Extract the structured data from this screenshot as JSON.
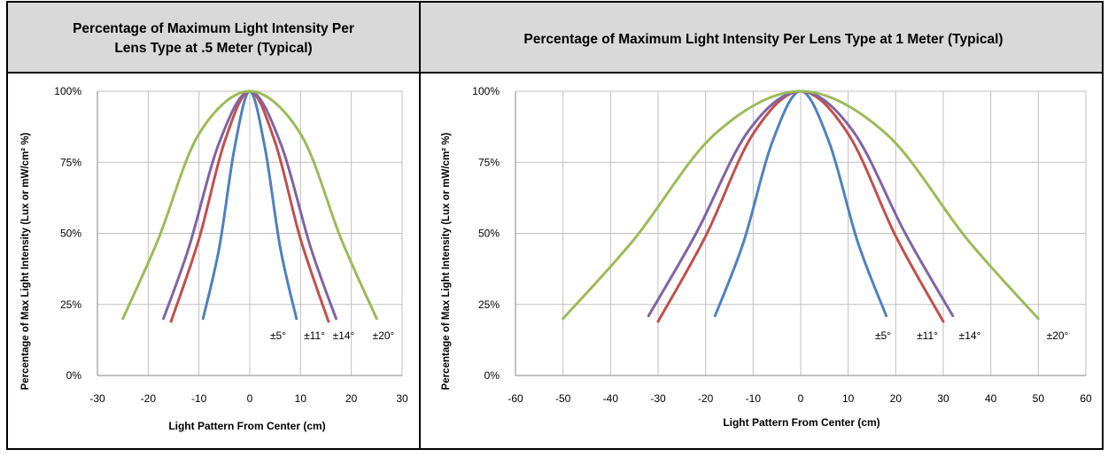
{
  "colors": {
    "header_bg": "#d9d9d9",
    "border": "#000000",
    "grid": "#bfbfbf",
    "text": "#000000"
  },
  "chart_data": [
    {
      "type": "line",
      "title": "Percentage of Maximum Light Intensity Per Lens Type at .5 Meter (Typical)",
      "title_lines": [
        "Percentage of Maximum  Light Intensity Per",
        "Lens Type at .5 Meter (Typical)"
      ],
      "xlabel": "Light Pattern  From Center (cm)",
      "ylabel": "Percentage of Max Light  Intensity (Lux or mW/cm² %)",
      "xlim": [
        -30,
        30
      ],
      "ylim": [
        0,
        100
      ],
      "x_ticks": [
        -30,
        -20,
        -10,
        0,
        10,
        20,
        30
      ],
      "x_tick_labels": [
        "-30",
        "-20",
        "-10",
        "0",
        "10",
        "20",
        "30"
      ],
      "y_ticks": [
        0,
        25,
        50,
        75,
        100
      ],
      "y_tick_labels": [
        "0%",
        "25%",
        "50%",
        "75%",
        "100%"
      ],
      "grid": true,
      "series": [
        {
          "name": "±5°",
          "color": "#4f81bd",
          "x": [
            -9.2,
            -6,
            -3,
            0,
            3,
            6,
            9.2
          ],
          "y": [
            20,
            45,
            80,
            100,
            80,
            45,
            20
          ]
        },
        {
          "name": "±11°",
          "color": "#c0504d",
          "x": [
            -15.5,
            -10,
            -5,
            0,
            5,
            10,
            15.5
          ],
          "y": [
            19,
            48,
            82,
            100,
            82,
            48,
            19
          ]
        },
        {
          "name": "±14°",
          "color": "#8064a2",
          "x": [
            -17,
            -12,
            -6,
            0,
            6,
            12,
            17
          ],
          "y": [
            20,
            45,
            82,
            100,
            82,
            45,
            20
          ]
        },
        {
          "name": "±20°",
          "color": "#9bbb59",
          "x": [
            -25,
            -18,
            -10,
            0,
            10,
            18,
            25
          ],
          "y": [
            20,
            48,
            85,
            100,
            85,
            48,
            20
          ]
        }
      ],
      "annotations": [
        "±5°",
        "±11°",
        "±14°",
        "±20°"
      ]
    },
    {
      "type": "line",
      "title": "Percentage of Maximum Light Intensity Per Lens Type at 1 Meter (Typical)",
      "title_lines": [
        "Percentage of Maximum  Light Intensity Per Lens Type at 1 Meter (Typical)"
      ],
      "xlabel": "Light Pattern  From Center (cm)",
      "ylabel": "Percentage of Max Light  Intensity (Lux or mW/cm² %)",
      "xlim": [
        -60,
        60
      ],
      "ylim": [
        0,
        100
      ],
      "x_ticks": [
        -60,
        -50,
        -40,
        -30,
        -20,
        -10,
        0,
        10,
        20,
        30,
        40,
        50,
        60
      ],
      "x_tick_labels": [
        "-60",
        "-50",
        "-40",
        "-30",
        "-20",
        "-10",
        "0",
        "10",
        "20",
        "30",
        "40",
        "50",
        "60"
      ],
      "y_ticks": [
        0,
        25,
        50,
        75,
        100
      ],
      "y_tick_labels": [
        "0%",
        "25%",
        "50%",
        "75%",
        "100%"
      ],
      "grid": true,
      "series": [
        {
          "name": "±5°",
          "color": "#4f81bd",
          "x": [
            -18,
            -12,
            -6,
            0,
            6,
            12,
            18
          ],
          "y": [
            21,
            47,
            82,
            100,
            82,
            47,
            21
          ]
        },
        {
          "name": "±11°",
          "color": "#c0504d",
          "x": [
            -30,
            -20,
            -10,
            0,
            10,
            20,
            30
          ],
          "y": [
            19,
            49,
            85,
            100,
            85,
            49,
            19
          ]
        },
        {
          "name": "±14°",
          "color": "#8064a2",
          "x": [
            -32,
            -22,
            -11,
            0,
            11,
            22,
            32
          ],
          "y": [
            21,
            50,
            86,
            100,
            86,
            50,
            21
          ]
        },
        {
          "name": "±20°",
          "color": "#9bbb59",
          "x": [
            -50,
            -35,
            -18,
            0,
            18,
            35,
            50
          ],
          "y": [
            20,
            48,
            85,
            100,
            85,
            48,
            20
          ]
        }
      ],
      "annotations": [
        "±5°",
        "±11°",
        "±14°",
        "±20°"
      ]
    }
  ]
}
